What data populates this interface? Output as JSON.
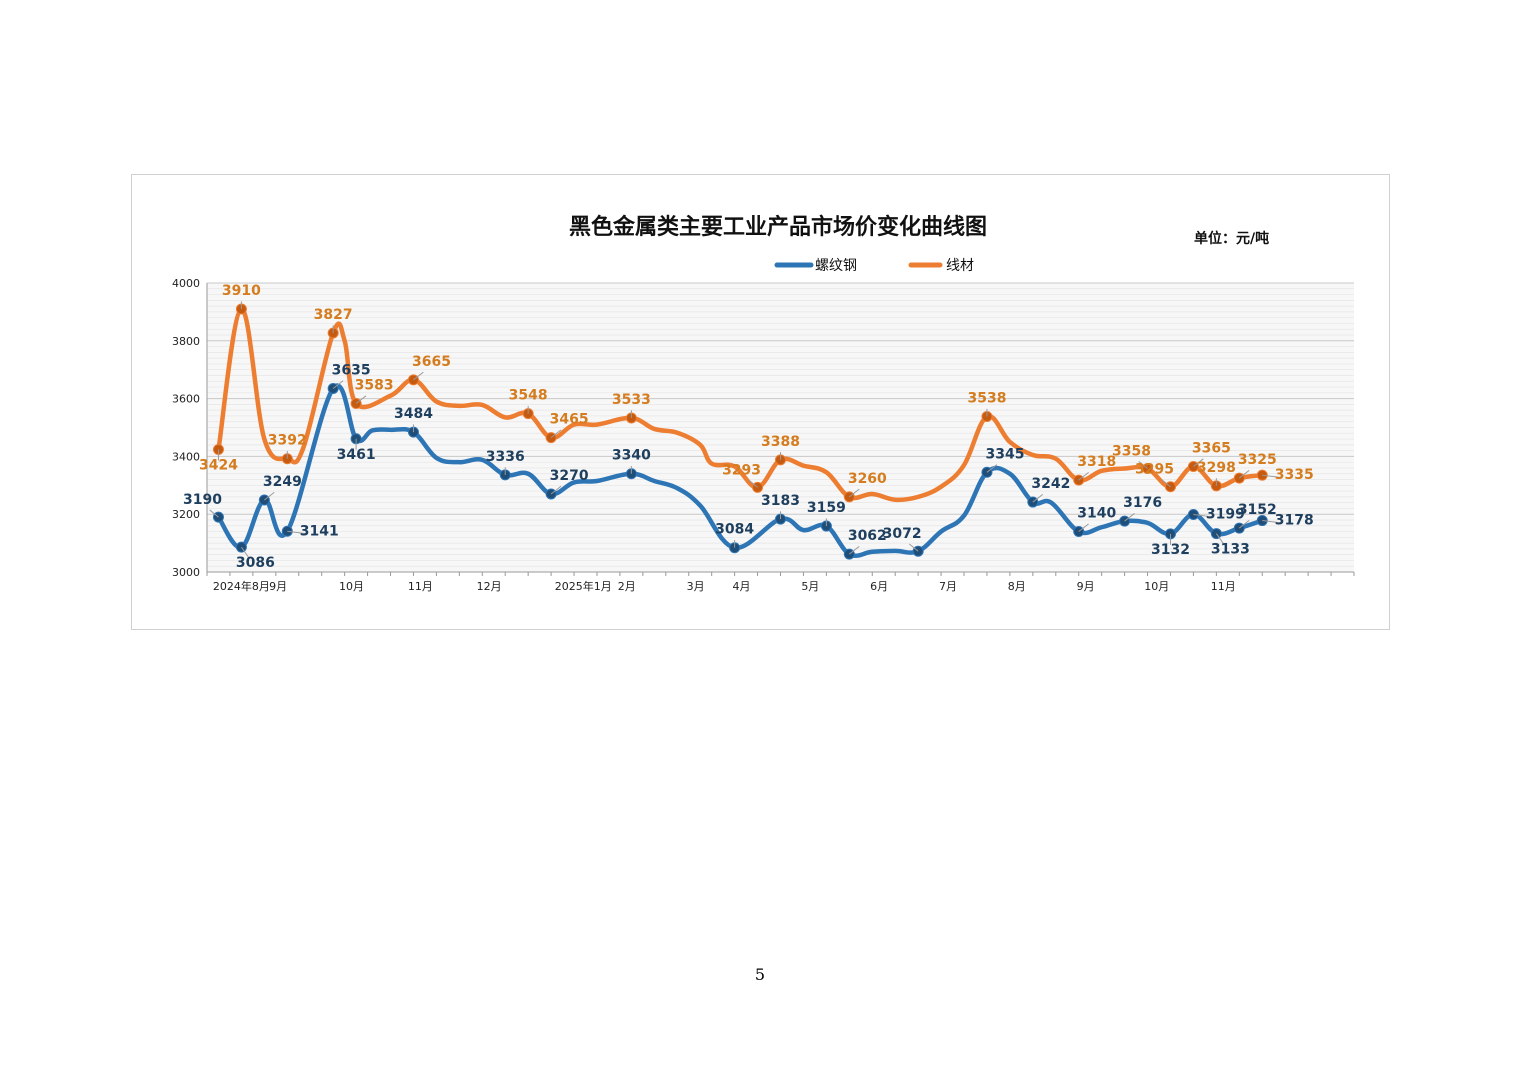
{
  "page": {
    "number": "5"
  },
  "chart_data": {
    "type": "line",
    "title": "黑色金属类主要工业产品市场价变化曲线图",
    "unit": "单位：元/吨",
    "ylim": [
      3000,
      4000
    ],
    "yticks": [
      "3000",
      "3200",
      "3400",
      "3600",
      "3800",
      "4000"
    ],
    "grid": true,
    "legend_position": "top",
    "x_labels": [
      {
        "pos": 1.5,
        "label": "2024年8月"
      },
      {
        "pos": 3.1,
        "label": "9月"
      },
      {
        "pos": 6.3,
        "label": "10月"
      },
      {
        "pos": 9.3,
        "label": "11月"
      },
      {
        "pos": 12.3,
        "label": "12月"
      },
      {
        "pos": 16.4,
        "label": "2025年1月"
      },
      {
        "pos": 18.3,
        "label": "2月"
      },
      {
        "pos": 21.3,
        "label": "3月"
      },
      {
        "pos": 23.3,
        "label": "4月"
      },
      {
        "pos": 26.3,
        "label": "5月"
      },
      {
        "pos": 29.3,
        "label": "6月"
      },
      {
        "pos": 32.3,
        "label": "7月"
      },
      {
        "pos": 35.3,
        "label": "8月"
      },
      {
        "pos": 38.3,
        "label": "9月"
      },
      {
        "pos": 41.4,
        "label": "10月"
      },
      {
        "pos": 44.3,
        "label": "11月"
      }
    ],
    "series": [
      {
        "name": "螺纹钢",
        "color": "#2e75b6",
        "marker_color": "#1f4e79",
        "label_color": "#1f3f5f",
        "points": [
          {
            "x": 0.5,
            "y": 3190,
            "label": "3190",
            "lbl": "tl"
          },
          {
            "x": 1.5,
            "y": 3086,
            "label": "3086",
            "lbl": "br"
          },
          {
            "x": 2.5,
            "y": 3249,
            "label": "3249",
            "lbl": "tr"
          },
          {
            "x": 3.5,
            "y": 3141,
            "label": "3141",
            "lbl": "r"
          },
          {
            "x": 5.5,
            "y": 3635,
            "label": "3635",
            "lbl": "tr"
          },
          {
            "x": 6.5,
            "y": 3461,
            "label": "3461",
            "lbl": "b"
          },
          {
            "x": 7.2,
            "y": 3490
          },
          {
            "x": 8.0,
            "y": 3492
          },
          {
            "x": 9.0,
            "y": 3484,
            "label": "3484",
            "lbl": "t"
          },
          {
            "x": 10.0,
            "y": 3395
          },
          {
            "x": 11.0,
            "y": 3380
          },
          {
            "x": 12.0,
            "y": 3388
          },
          {
            "x": 13.0,
            "y": 3336,
            "label": "3336",
            "lbl": "t"
          },
          {
            "x": 14.0,
            "y": 3340
          },
          {
            "x": 15.0,
            "y": 3270,
            "label": "3270",
            "lbl": "tr"
          },
          {
            "x": 16.0,
            "y": 3310
          },
          {
            "x": 17.0,
            "y": 3315
          },
          {
            "x": 18.5,
            "y": 3340,
            "label": "3340",
            "lbl": "t"
          },
          {
            "x": 19.5,
            "y": 3315
          },
          {
            "x": 20.5,
            "y": 3290
          },
          {
            "x": 21.5,
            "y": 3230
          },
          {
            "x": 23.0,
            "y": 3084,
            "label": "3084",
            "lbl": "t"
          },
          {
            "x": 25.0,
            "y": 3183,
            "label": "3183",
            "lbl": "t"
          },
          {
            "x": 26.0,
            "y": 3145
          },
          {
            "x": 27.0,
            "y": 3159,
            "label": "3159",
            "lbl": "t"
          },
          {
            "x": 28.0,
            "y": 3062,
            "label": "3062",
            "lbl": "tr"
          },
          {
            "x": 29.0,
            "y": 3070
          },
          {
            "x": 30.0,
            "y": 3073
          },
          {
            "x": 31.0,
            "y": 3072,
            "label": "3072",
            "lbl": "tl"
          },
          {
            "x": 32.0,
            "y": 3140
          },
          {
            "x": 33.0,
            "y": 3195
          },
          {
            "x": 34.0,
            "y": 3345,
            "label": "3345",
            "lbl": "tr"
          },
          {
            "x": 35.0,
            "y": 3340
          },
          {
            "x": 36.0,
            "y": 3242,
            "label": "3242",
            "lbl": "tr"
          },
          {
            "x": 36.8,
            "y": 3240
          },
          {
            "x": 38.0,
            "y": 3140,
            "label": "3140",
            "lbl": "tr"
          },
          {
            "x": 39.0,
            "y": 3155
          },
          {
            "x": 40.0,
            "y": 3176,
            "label": "3176",
            "lbl": "tr"
          },
          {
            "x": 41.0,
            "y": 3170
          },
          {
            "x": 42.0,
            "y": 3132,
            "label": "3132",
            "lbl": "b"
          },
          {
            "x": 43.0,
            "y": 3199,
            "label": "3199",
            "lbl": "r"
          },
          {
            "x": 44.0,
            "y": 3133,
            "label": "3133",
            "lbl": "br"
          },
          {
            "x": 45.0,
            "y": 3152,
            "label": "3152",
            "lbl": "tr"
          },
          {
            "x": 46.0,
            "y": 3178,
            "label": "3178",
            "lbl": "r"
          }
        ]
      },
      {
        "name": "线材",
        "color": "#ed7d31",
        "marker_color": "#c55a11",
        "label_color": "#d47c1e",
        "points": [
          {
            "x": 0.5,
            "y": 3424,
            "label": "3424",
            "lbl": "b"
          },
          {
            "x": 1.5,
            "y": 3910,
            "label": "3910",
            "lbl": "t"
          },
          {
            "x": 2.5,
            "y": 3460
          },
          {
            "x": 3.5,
            "y": 3392,
            "label": "3392",
            "lbl": "t"
          },
          {
            "x": 4.2,
            "y": 3430
          },
          {
            "x": 5.5,
            "y": 3827,
            "label": "3827",
            "lbl": "t"
          },
          {
            "x": 6.0,
            "y": 3800
          },
          {
            "x": 6.5,
            "y": 3583,
            "label": "3583",
            "lbl": "tr"
          },
          {
            "x": 8.0,
            "y": 3610
          },
          {
            "x": 9.0,
            "y": 3665,
            "label": "3665",
            "lbl": "tr"
          },
          {
            "x": 10.0,
            "y": 3590
          },
          {
            "x": 11.0,
            "y": 3575
          },
          {
            "x": 12.0,
            "y": 3578
          },
          {
            "x": 13.0,
            "y": 3535
          },
          {
            "x": 14.0,
            "y": 3548,
            "label": "3548",
            "lbl": "t"
          },
          {
            "x": 15.0,
            "y": 3465,
            "label": "3465",
            "lbl": "tr"
          },
          {
            "x": 16.0,
            "y": 3510
          },
          {
            "x": 17.0,
            "y": 3510
          },
          {
            "x": 18.5,
            "y": 3533,
            "label": "3533",
            "lbl": "t"
          },
          {
            "x": 19.5,
            "y": 3495
          },
          {
            "x": 20.5,
            "y": 3482
          },
          {
            "x": 21.5,
            "y": 3440
          },
          {
            "x": 22.0,
            "y": 3375
          },
          {
            "x": 23.0,
            "y": 3365
          },
          {
            "x": 24.0,
            "y": 3293,
            "label": "3293",
            "lbl": "tl"
          },
          {
            "x": 25.0,
            "y": 3388,
            "label": "3388",
            "lbl": "t"
          },
          {
            "x": 26.0,
            "y": 3368
          },
          {
            "x": 27.0,
            "y": 3345
          },
          {
            "x": 28.0,
            "y": 3260,
            "label": "3260",
            "lbl": "tr"
          },
          {
            "x": 29.0,
            "y": 3270
          },
          {
            "x": 30.0,
            "y": 3250
          },
          {
            "x": 31.0,
            "y": 3260
          },
          {
            "x": 32.0,
            "y": 3295
          },
          {
            "x": 33.0,
            "y": 3370
          },
          {
            "x": 34.0,
            "y": 3538,
            "label": "3538",
            "lbl": "t"
          },
          {
            "x": 35.0,
            "y": 3450
          },
          {
            "x": 36.0,
            "y": 3405
          },
          {
            "x": 37.0,
            "y": 3392
          },
          {
            "x": 38.0,
            "y": 3318,
            "label": "3318",
            "lbl": "tr"
          },
          {
            "x": 39.0,
            "y": 3350
          },
          {
            "x": 40.0,
            "y": 3358
          },
          {
            "x": 41.0,
            "y": 3358,
            "label": "3358",
            "lbl": "tl"
          },
          {
            "x": 42.0,
            "y": 3295,
            "label": "3295",
            "lbl": "tl"
          },
          {
            "x": 43.0,
            "y": 3365,
            "label": "3365",
            "lbl": "tr"
          },
          {
            "x": 44.0,
            "y": 3298,
            "label": "3298",
            "lbl": "t"
          },
          {
            "x": 45.0,
            "y": 3325,
            "label": "3325",
            "lbl": "tr"
          },
          {
            "x": 46.0,
            "y": 3335,
            "label": "3335",
            "lbl": "r"
          }
        ]
      }
    ]
  }
}
